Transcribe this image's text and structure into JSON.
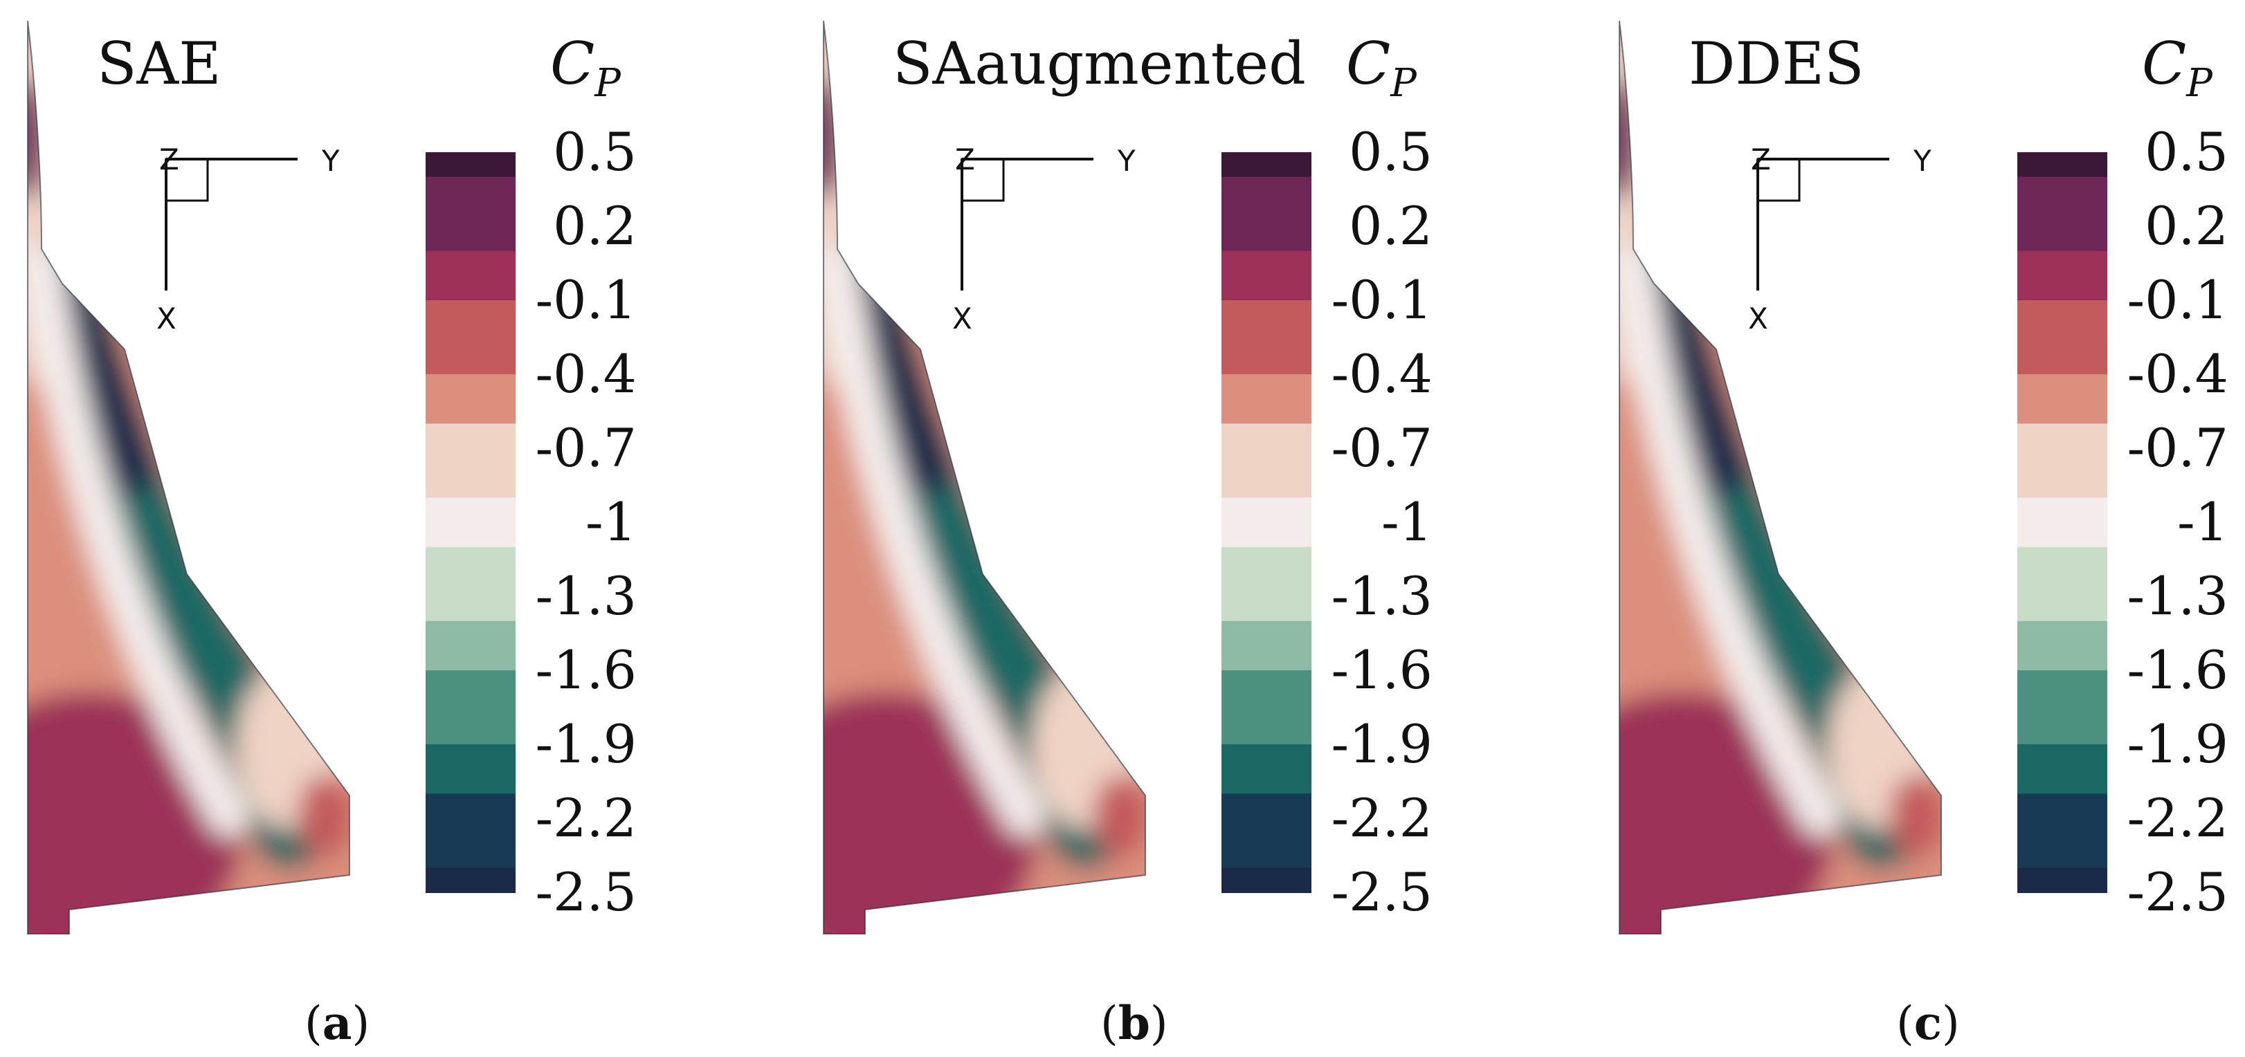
{
  "chart_data": {
    "type": "heatmap",
    "colorbar": {
      "label_main": "C",
      "label_sub": "P",
      "range": [
        -2.5,
        0.5
      ],
      "ticks": [
        "0.5",
        "0.2",
        "-0.1",
        "-0.4",
        "-0.7",
        "-1",
        "-1.3",
        "-1.6",
        "-1.9",
        "-2.2",
        "-2.5"
      ],
      "colors": [
        "#3a1836",
        "#6e2557",
        "#9c3059",
        "#c35a5b",
        "#dc8f7d",
        "#efd3c5",
        "#f3ecea",
        "#c9dcc8",
        "#8fbba6",
        "#4c907f",
        "#1b6764",
        "#183a55",
        "#1a2a48"
      ]
    },
    "axes_triad": {
      "x": "X",
      "y": "Y",
      "z": "Z"
    },
    "panels": [
      {
        "title": "SAE",
        "caption_letter": "a"
      },
      {
        "title": "SAaugmented",
        "caption_letter": "b"
      },
      {
        "title": "DDES",
        "caption_letter": "c"
      }
    ]
  }
}
